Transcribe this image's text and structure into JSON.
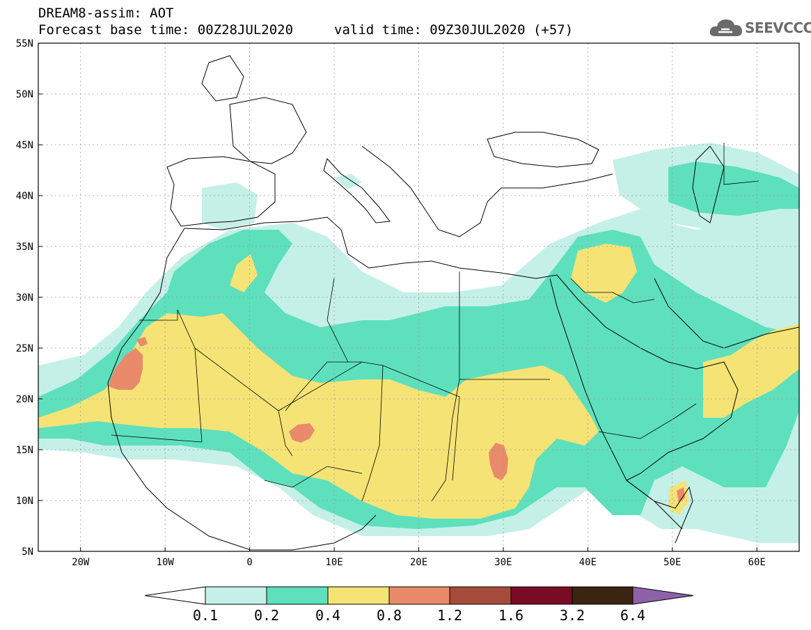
{
  "title": {
    "line1": "DREAM8-assim: AOT",
    "base": "Forecast base time: 00Z28JUL2020",
    "valid": "valid time: 09Z30JUL2020 (+57)"
  },
  "logo": {
    "text": "SEEVCCC",
    "icon": "cloud-icon"
  },
  "axes": {
    "lat_labels": [
      "55N",
      "50N",
      "45N",
      "40N",
      "35N",
      "30N",
      "25N",
      "20N",
      "15N",
      "10N",
      "5N"
    ],
    "lon_labels": [
      "20W",
      "10W",
      "0",
      "10E",
      "20E",
      "30E",
      "40E",
      "50E",
      "60E"
    ],
    "lat_range": [
      5,
      55
    ],
    "lon_range": [
      -25,
      65
    ]
  },
  "colorbar": {
    "labels": [
      "0.1",
      "0.2",
      "0.4",
      "0.8",
      "1.2",
      "1.6",
      "3.2",
      "6.4"
    ],
    "colors": [
      "#ffffff",
      "#c4f0e8",
      "#5ee0bd",
      "#f5e375",
      "#e98a6a",
      "#a64a3c",
      "#7a0b25",
      "#3b2512",
      "#8e62a8"
    ]
  },
  "colors": {
    "aot_0_1": "#c4f0e8",
    "aot_0_2": "#5ee0bd",
    "aot_0_4": "#f5e375",
    "aot_0_8": "#e98a6a",
    "borders": "#000000",
    "grid": "#9a9a9a"
  }
}
